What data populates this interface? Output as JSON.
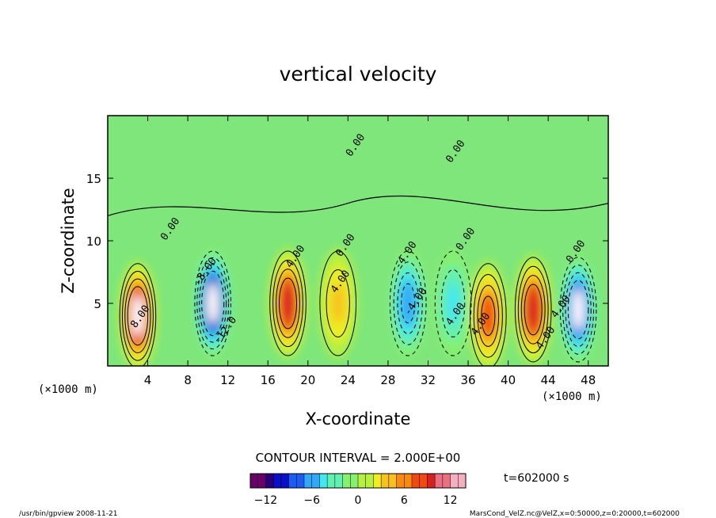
{
  "chart_data": {
    "type": "heatmap",
    "title": "vertical velocity",
    "xlabel": "X-coordinate",
    "ylabel": "Z-coordinate",
    "x_unit": "(×1000 m)",
    "xlim": [
      0,
      50
    ],
    "ylim": [
      0,
      20
    ],
    "xticks": [
      4,
      8,
      12,
      16,
      20,
      24,
      28,
      32,
      36,
      40,
      44,
      48
    ],
    "yticks": [
      5,
      10,
      15
    ],
    "contour_interval_text": "CONTOUR INTERVAL = 2.000E+00",
    "contour_labels": [
      "0.00",
      "0.00",
      "0.00",
      "0.00",
      "0.00",
      "0.00",
      "4.00",
      "4.00",
      "4.00",
      "4.00",
      "4.00",
      "4.00",
      "8.00",
      "-12.0",
      "-4.00",
      "-8.00",
      "-4.00"
    ],
    "time_text": "t=602000 s",
    "colorbar": {
      "ticks": [
        -12,
        -6,
        0,
        6,
        12
      ],
      "range": [
        -14,
        14
      ],
      "colors": [
        "#6a006a",
        "#2a007a",
        "#0a10c8",
        "#1c5cf2",
        "#34a8f8",
        "#44e6f0",
        "#60f0b4",
        "#86f070",
        "#b8f040",
        "#f0ee20",
        "#f8c020",
        "#f88a10",
        "#f04a10",
        "#d82020",
        "#e87080",
        "#f4b0c0"
      ]
    },
    "cells": [
      {
        "x": 3,
        "z": 4.0,
        "w": 11,
        "desc": "updraft-max"
      },
      {
        "x": 10.5,
        "z": 5.0,
        "w": -13,
        "desc": "downdraft-max"
      },
      {
        "x": 18,
        "z": 5.0,
        "w": 10,
        "desc": "updraft"
      },
      {
        "x": 23,
        "z": 5.0,
        "w": 4,
        "desc": "weak-updraft"
      },
      {
        "x": 30,
        "z": 5.0,
        "w": -7,
        "desc": "downdraft"
      },
      {
        "x": 34.5,
        "z": 5.0,
        "w": -4,
        "desc": "weak-downdraft"
      },
      {
        "x": 38,
        "z": 4.0,
        "w": 8,
        "desc": "updraft"
      },
      {
        "x": 42.5,
        "z": 4.5,
        "w": 10,
        "desc": "updraft"
      },
      {
        "x": 47,
        "z": 4.5,
        "w": -12,
        "desc": "downdraft"
      }
    ]
  },
  "footer": {
    "left": "/usr/bin/gpview  2008-11-21",
    "right": "MarsCond_VelZ.nc@VelZ,x=0:50000,z=0:20000,t=602000"
  }
}
